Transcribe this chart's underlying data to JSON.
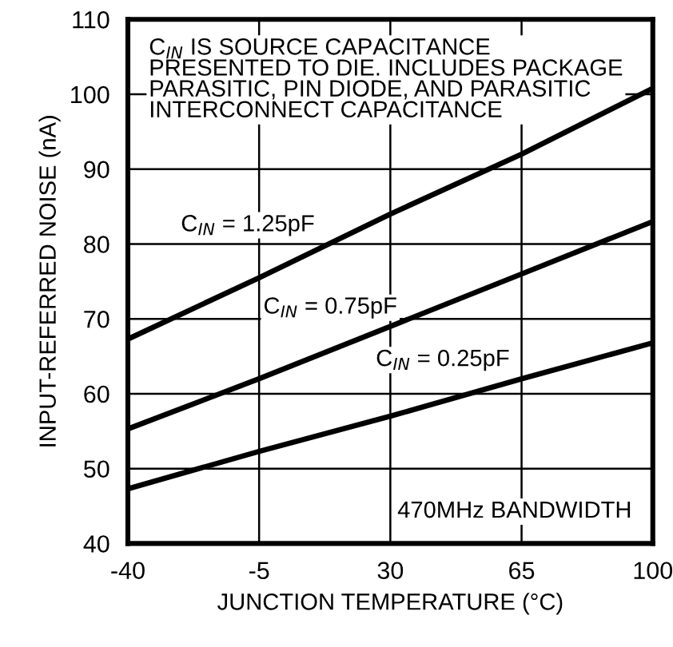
{
  "chart_data": {
    "type": "line",
    "xlabel": "JUNCTION TEMPERATURE (°C)",
    "ylabel": "INPUT-REFERRED NOISE (nA)",
    "x": [
      -40,
      -5,
      30,
      65,
      100
    ],
    "series": [
      {
        "name": "C$_{IN}$ = 1.25pF",
        "color": "#000000",
        "values": [
          67.3,
          75.5,
          84,
          92,
          100.8
        ]
      },
      {
        "name": "C$_{IN}$ = 0.75pF",
        "color": "#000000",
        "values": [
          55.3,
          62,
          69,
          76,
          83
        ]
      },
      {
        "name": "C$_{IN}$ = 0.25pF",
        "color": "#000000",
        "values": [
          47.3,
          52.3,
          57,
          62,
          66.8
        ]
      }
    ],
    "annotations": [
      "C$_{IN}$ IS SOURCE CAPACITANCE\nPRESENTED TO DIE. INCLUDES PACKAGE\nPARASITIC, PIN DIODE, AND PARASITIC\nINTERCONNECT CAPACITANCE",
      "470MHz BANDWIDTH"
    ],
    "xlim": [
      -40,
      100
    ],
    "xticks": [
      -40,
      -5,
      30,
      65,
      100
    ],
    "ylim": [
      40,
      110
    ],
    "yticks": [
      40,
      50,
      60,
      70,
      80,
      90,
      100,
      110
    ],
    "grid": true,
    "legend": false,
    "marker": "none",
    "line_style": "solid"
  }
}
